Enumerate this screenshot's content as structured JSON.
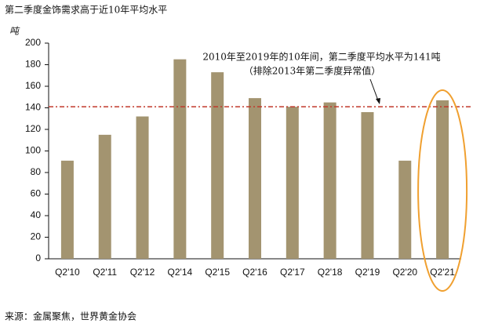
{
  "chart_data": {
    "type": "bar",
    "title": "第二季度金饰需求高于近10年平均水平",
    "y_label": "吨",
    "categories": [
      "Q2'10",
      "Q2'11",
      "Q2'12",
      "Q2'14",
      "Q2'15",
      "Q2'16",
      "Q2'17",
      "Q2'18",
      "Q2'19",
      "Q2'20",
      "Q2'21"
    ],
    "values": [
      91,
      115,
      132,
      185,
      173,
      149,
      141,
      145,
      136,
      91,
      147
    ],
    "color": "#a39470",
    "ylim": [
      0,
      200
    ],
    "yticks": [
      0,
      20,
      40,
      60,
      80,
      100,
      120,
      140,
      160,
      180,
      200
    ],
    "grid": false,
    "reference_line": {
      "value": 141,
      "color": "#c0392b"
    },
    "annotation": [
      "2010年至2019年的10年间，第二季度平均水平为141吨",
      "（排除2013年第二季度异常值）"
    ],
    "source": "来源：金属聚焦，世界黄金协会"
  }
}
